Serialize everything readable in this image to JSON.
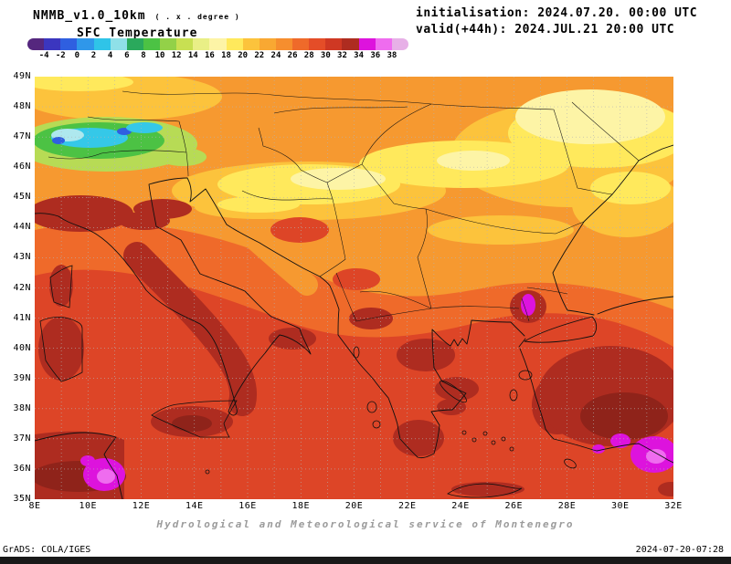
{
  "header": {
    "model": "NMMB_v1.0_10km",
    "resolution_note": "( . x . degree )",
    "field": "SFC Temperature",
    "initialisation": "initialisation: 2024.07.20. 00:00 UTC",
    "valid": "valid(+44h): 2024.JUL.21 20:00 UTC"
  },
  "colorbar": {
    "tick_labels": [
      "-4",
      "-2",
      "0",
      "2",
      "4",
      "6",
      "8",
      "10",
      "12",
      "14",
      "16",
      "18",
      "20",
      "22",
      "24",
      "26",
      "28",
      "30",
      "32",
      "34",
      "36",
      "38"
    ],
    "colors": [
      "#55277e",
      "#3b36bf",
      "#2f5fe0",
      "#2f97ea",
      "#2fc4e8",
      "#8fe0e8",
      "#2aa95c",
      "#4cc244",
      "#93d148",
      "#c8e052",
      "#e9ef86",
      "#fdf4a6",
      "#ffe95c",
      "#fcc33c",
      "#f9a832",
      "#f68e2e",
      "#ef6a2a",
      "#e44d28",
      "#cf3823",
      "#ae2c20",
      "#dd13dd",
      "#ef6cef",
      "#e7b0e7"
    ]
  },
  "axes": {
    "lat_labels": [
      "49N",
      "48N",
      "47N",
      "46N",
      "45N",
      "44N",
      "43N",
      "42N",
      "41N",
      "40N",
      "39N",
      "38N",
      "37N",
      "36N",
      "35N"
    ],
    "lon_labels": [
      "8E",
      "10E",
      "12E",
      "14E",
      "16E",
      "18E",
      "20E",
      "22E",
      "24E",
      "26E",
      "28E",
      "30E",
      "32E"
    ]
  },
  "footer": {
    "service": "Hydrological and Meteorological service of Montenegro",
    "credit": "GrADS: COLA/IGES",
    "generated": "2024-07-20-07:28"
  },
  "chart_data": {
    "type": "heatmap",
    "title": "SFC Temperature",
    "model": "NMMB_v1.0_10km",
    "initialisation": "2024.07.20. 00:00 UTC",
    "valid": "(+44h) 2024.JUL.21 20:00 UTC",
    "units": "degrees C",
    "colorbar_levels": [
      -4,
      -2,
      0,
      2,
      4,
      6,
      8,
      10,
      12,
      14,
      16,
      18,
      20,
      22,
      24,
      26,
      28,
      30,
      32,
      34,
      36,
      38
    ],
    "lat_range": [
      35,
      49
    ],
    "lon_range": [
      8,
      32
    ],
    "grid_interval_deg": 1,
    "lat_tick_interval_deg": 1,
    "lon_tick_interval_deg": 2,
    "legend_position": "top-left horizontal",
    "notable_features": [
      "Cool 6-16 C band over the Alps around 46-47N, 8-13E (green/cyan/blue pocket)",
      "Warm 18-22 C yellow band across the Pannonian plain (45.5-47.5N, 17-27E) and NE corner near the Black Sea (46-49N, 25-31E)",
      "24-26 C orange over most of the northern Balkans, Adriatic and Black Sea",
      "28-32 C red over the Tyrrhenian, Ionian, Aegean seas, Greece and western Turkey",
      "30-34 C dark red over inland Italy, Sicily, Sardinia, Corsica, North Africa, Peloponnese and central Anatolia",
      "34-38 C magenta hot spots over Tunisia (9-10E, 35-37N), SW Turkey (29-31.5E, 36-38N) and near 26E, 41.5N"
    ]
  }
}
